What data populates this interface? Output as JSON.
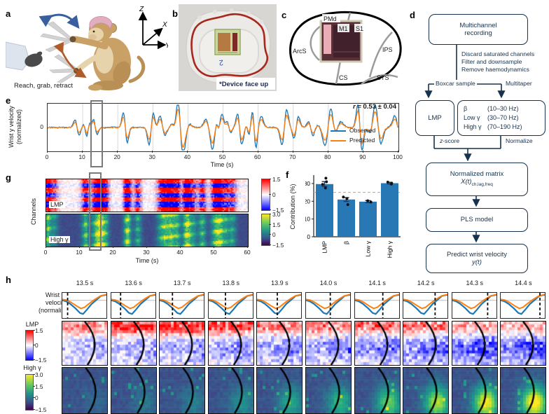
{
  "panel_letters": {
    "a": "a",
    "b": "b",
    "c": "c",
    "d": "d",
    "e": "e",
    "f": "f",
    "g": "g",
    "h": "h"
  },
  "colors": {
    "observed": "#1f77b4",
    "predicted": "#ff7f0e",
    "bar": "#2878b5",
    "navy": "#16324f",
    "highlight": "#7a7a7a"
  },
  "panel_a": {
    "caption": "Reach, grab, retract",
    "axis_z": "Z",
    "axis_x": "X",
    "axis_y": "Y"
  },
  "panel_b": {
    "caption": "*Device face up",
    "mark": "2"
  },
  "panel_c": {
    "pmd": "PMd",
    "m1": "M1",
    "s1": "S1",
    "ips": "IPS",
    "arcs": "ArcS",
    "cs": "CS",
    "sts": "STS"
  },
  "panel_d": {
    "box1_line1": "Multichannel",
    "box1_line2": "recording",
    "steps": [
      "Discard saturated channels",
      "Filter and downsample",
      "Remove haemodynamics"
    ],
    "branch_left": "Boxcar sample",
    "branch_right": "Multitaper",
    "lmp": "LMP",
    "freq_rows": [
      [
        "β",
        "(10–30 Hz)"
      ],
      [
        "Low γ",
        "(30–70 Hz)"
      ],
      [
        "High γ",
        "(70–190 Hz)"
      ]
    ],
    "zscore_var": "z",
    "zscore_rest": "-score",
    "normalize": "Normalize",
    "matrix_line1": "Normalized matrix",
    "matrix_var": "X(t)",
    "matrix_sub": "ch,lag,freq",
    "pls": "PLS model",
    "predict_line1": "Predict wrist velocity",
    "predict_var": "y(t)"
  },
  "panel_e": {
    "ylabel_1": "Wrist y velocity",
    "ylabel_2": "(normalized)",
    "ytick": "0",
    "xlabel": "Time (s)",
    "ann_var": "r",
    "ann_rest": " = 0.53 ± 0.04",
    "legend_observed": "Observed",
    "legend_predicted": "Predicted"
  },
  "panel_g": {
    "ylabel": "Channels",
    "xlabel": "Time (s)",
    "map1_label": "LMP",
    "map2_label": "High γ"
  },
  "panel_h": {
    "row1_label_1": "Wrist y-",
    "row1_label_2": "velocity",
    "row1_label_3": "(normalized)",
    "lmp_label": "LMP",
    "hg_label": "High γ"
  },
  "chart_data": [
    {
      "panel": "e",
      "type": "line",
      "xlabel": "Time (s)",
      "ylabel": "Wrist y velocity (normalized)",
      "x_range": [
        0,
        100
      ],
      "xticks": [
        0,
        10,
        20,
        30,
        40,
        50,
        60,
        70,
        80,
        90,
        100
      ],
      "ytick_labels": [
        "0"
      ],
      "series": [
        {
          "name": "Observed",
          "color": "#1f77b4"
        },
        {
          "name": "Predicted",
          "color": "#ff7f0e"
        }
      ],
      "annotation": "r = 0.53 ± 0.04",
      "highlight_window_s": [
        12.6,
        15.4
      ],
      "note": "zero-mean noisy velocity traces, sparser before 25 s",
      "seed": 2024
    },
    {
      "panel": "f",
      "type": "bar",
      "categories": [
        "LMP",
        "β",
        "Low γ",
        "High γ"
      ],
      "values": [
        29.7,
        21.0,
        19.8,
        30.2
      ],
      "errors": [
        1.4,
        1.1,
        0.6,
        0.5
      ],
      "points": [
        [
          33.0,
          31.0,
          29.5,
          27.5
        ],
        [
          22.4,
          21.5,
          18.1
        ],
        [
          20.3,
          19.6
        ],
        [
          30.8,
          30.2,
          29.7
        ]
      ],
      "ylabel": "Contribution (%)",
      "yticks": [
        0,
        10,
        20,
        30
      ],
      "ylim": [
        0,
        34
      ],
      "reference_line": 25,
      "bar_color": "#2878b5"
    },
    {
      "panel": "g",
      "type": "heatmap",
      "maps": [
        {
          "label": "LMP",
          "cmap": "bwr",
          "clim": [
            -1.5,
            1.5
          ],
          "cbar_ticks": [
            "1.5",
            "0",
            "−1.5"
          ]
        },
        {
          "label": "High γ",
          "cmap": "viridis",
          "clim": [
            -1.5,
            3.0
          ],
          "cbar_ticks": [
            "3.0",
            "1.5",
            "0",
            "−1.5"
          ]
        }
      ],
      "xlabel": "Time (s)",
      "xticks": [
        0,
        10,
        20,
        30,
        40,
        50,
        60
      ],
      "ylabel": "Channels",
      "x_range_s": [
        0,
        60
      ],
      "highlight_window_s": [
        13,
        15
      ],
      "seed": 99
    },
    {
      "panel": "h",
      "type": "small-multiples",
      "times": [
        "13.5 s",
        "13.6 s",
        "13.7 s",
        "13.8 s",
        "13.9 s",
        "14.0 s",
        "14.1 s",
        "14.2 s",
        "14.3 s",
        "14.4 s"
      ],
      "rows": [
        "Wrist y-velocity (normalized)",
        "LMP",
        "High γ"
      ],
      "velocity_trace": {
        "zero_y": 0.3,
        "observed": [
          [
            0,
            0.3
          ],
          [
            0.08,
            0.33
          ],
          [
            0.18,
            0.44
          ],
          [
            0.3,
            0.62
          ],
          [
            0.4,
            0.8
          ],
          [
            0.47,
            0.84
          ],
          [
            0.56,
            0.66
          ],
          [
            0.66,
            0.45
          ],
          [
            0.76,
            0.3
          ],
          [
            0.88,
            0.12
          ],
          [
            1,
            0.08
          ]
        ],
        "predicted": [
          [
            0,
            0.26
          ],
          [
            0.1,
            0.29
          ],
          [
            0.2,
            0.38
          ],
          [
            0.32,
            0.52
          ],
          [
            0.42,
            0.62
          ],
          [
            0.5,
            0.58
          ],
          [
            0.6,
            0.44
          ],
          [
            0.72,
            0.28
          ],
          [
            0.85,
            0.14
          ],
          [
            1,
            0.06
          ]
        ],
        "cursor_pos": [
          0.12,
          0.21,
          0.29,
          0.38,
          0.46,
          0.55,
          0.63,
          0.72,
          0.8,
          0.89
        ]
      },
      "lmp_red_bias": [
        0.7,
        1.5,
        1.6,
        1.3,
        0.9,
        0.8,
        1.0,
        0.9,
        0.6,
        0.5
      ],
      "lmp_blue_bias": [
        0.6,
        0.7,
        0.8,
        0.9,
        0.9,
        1.0,
        1.1,
        1.2,
        1.5,
        1.4
      ],
      "hg_bright_bias": [
        0.15,
        0.25,
        0.3,
        0.45,
        0.6,
        0.7,
        0.9,
        1.1,
        1.3,
        1.4
      ],
      "cbar_lmp_ticks": [
        "1.5",
        "0",
        "−1.5"
      ],
      "cbar_hg_ticks": [
        "3.0",
        "1.5",
        "0",
        "−1.5"
      ],
      "seed": 7
    }
  ]
}
